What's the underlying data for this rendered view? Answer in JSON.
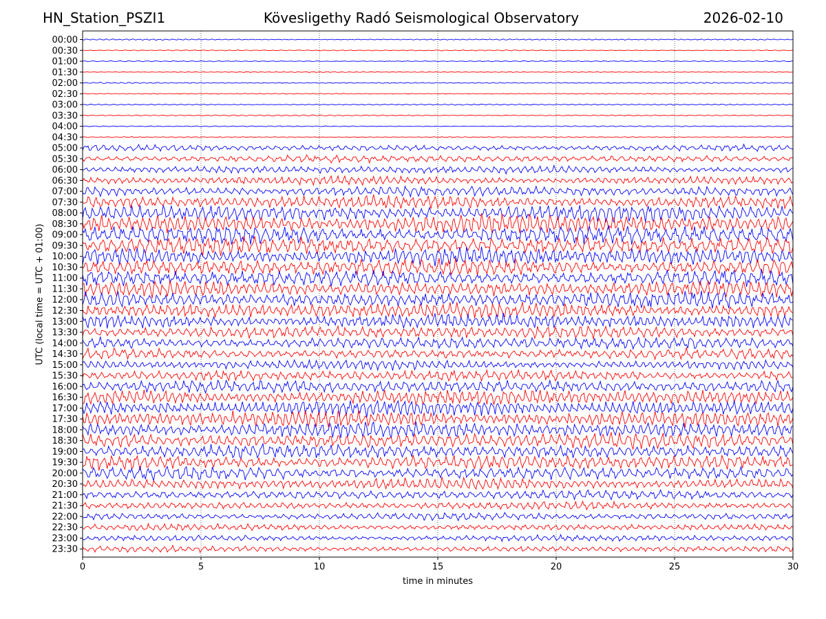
{
  "header": {
    "station": "HN_Station_PSZI1",
    "observatory": "Kövesligethy Radó Seismological Observatory",
    "date": "2026-02-10"
  },
  "chart_data": {
    "type": "line",
    "subtype": "helicorder",
    "title": "Kövesligethy Radó Seismological Observatory",
    "xlabel": "time in minutes",
    "ylabel": "UTC (local time = UTC + 01:00)",
    "xlim": [
      0,
      30
    ],
    "x_ticks": [
      0,
      5,
      10,
      15,
      20,
      25,
      30
    ],
    "row_labels": [
      "00:00",
      "00:30",
      "01:00",
      "01:30",
      "02:00",
      "02:30",
      "03:00",
      "03:30",
      "04:00",
      "04:30",
      "05:00",
      "05:30",
      "06:00",
      "06:30",
      "07:00",
      "07:30",
      "08:00",
      "08:30",
      "09:00",
      "09:30",
      "10:00",
      "10:30",
      "11:00",
      "11:30",
      "12:00",
      "12:30",
      "13:00",
      "13:30",
      "14:00",
      "14:30",
      "15:00",
      "15:30",
      "16:00",
      "16:30",
      "17:00",
      "17:30",
      "18:00",
      "18:30",
      "19:00",
      "19:30",
      "20:00",
      "20:30",
      "21:00",
      "21:30",
      "22:00",
      "22:30",
      "23:00",
      "23:30"
    ],
    "row_colors": [
      "#0000ff",
      "#ff0000"
    ],
    "relative_amplitude": [
      0.12,
      0.1,
      0.1,
      0.1,
      0.12,
      0.1,
      0.12,
      0.12,
      0.1,
      0.1,
      0.55,
      0.65,
      0.7,
      0.75,
      0.95,
      1.2,
      1.55,
      1.7,
      1.7,
      1.65,
      1.6,
      1.55,
      1.5,
      1.45,
      1.45,
      1.4,
      1.35,
      1.2,
      1.1,
      0.95,
      0.9,
      1.0,
      1.2,
      1.4,
      1.5,
      1.5,
      1.45,
      1.4,
      1.35,
      1.3,
      1.2,
      1.05,
      0.85,
      0.7,
      0.65,
      0.6,
      0.55,
      0.55
    ],
    "grid": "vertical dotted lines at x ticks",
    "legend": "none"
  }
}
